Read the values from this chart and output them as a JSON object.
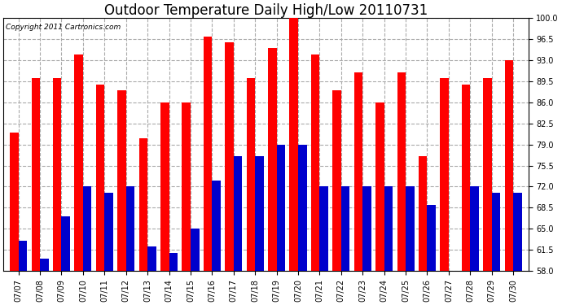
{
  "title": "Outdoor Temperature Daily High/Low 20110731",
  "copyright": "Copyright 2011 Cartronics.com",
  "dates": [
    "07/07",
    "07/08",
    "07/09",
    "07/10",
    "07/11",
    "07/12",
    "07/13",
    "07/14",
    "07/15",
    "07/16",
    "07/17",
    "07/18",
    "07/19",
    "07/20",
    "07/21",
    "07/22",
    "07/23",
    "07/24",
    "07/25",
    "07/26",
    "07/27",
    "07/28",
    "07/29",
    "07/30"
  ],
  "highs": [
    81,
    90,
    90,
    94,
    89,
    88,
    80,
    86,
    86,
    97,
    96,
    90,
    95,
    100,
    94,
    88,
    91,
    86,
    91,
    77,
    90,
    89,
    90,
    93
  ],
  "lows": [
    63,
    60,
    67,
    72,
    71,
    72,
    62,
    61,
    65,
    73,
    77,
    77,
    79,
    79,
    72,
    72,
    72,
    72,
    72,
    69,
    58,
    72,
    71,
    71
  ],
  "high_color": "#ff0000",
  "low_color": "#0000cc",
  "bg_color": "#ffffff",
  "grid_color": "#aaaaaa",
  "ymin": 58,
  "ymax": 100,
  "yticks": [
    58.0,
    61.5,
    65.0,
    68.5,
    72.0,
    75.5,
    79.0,
    82.5,
    86.0,
    89.5,
    93.0,
    96.5,
    100.0
  ],
  "bar_width": 0.4,
  "title_fontsize": 12,
  "tick_fontsize": 7,
  "copyright_fontsize": 6.5
}
